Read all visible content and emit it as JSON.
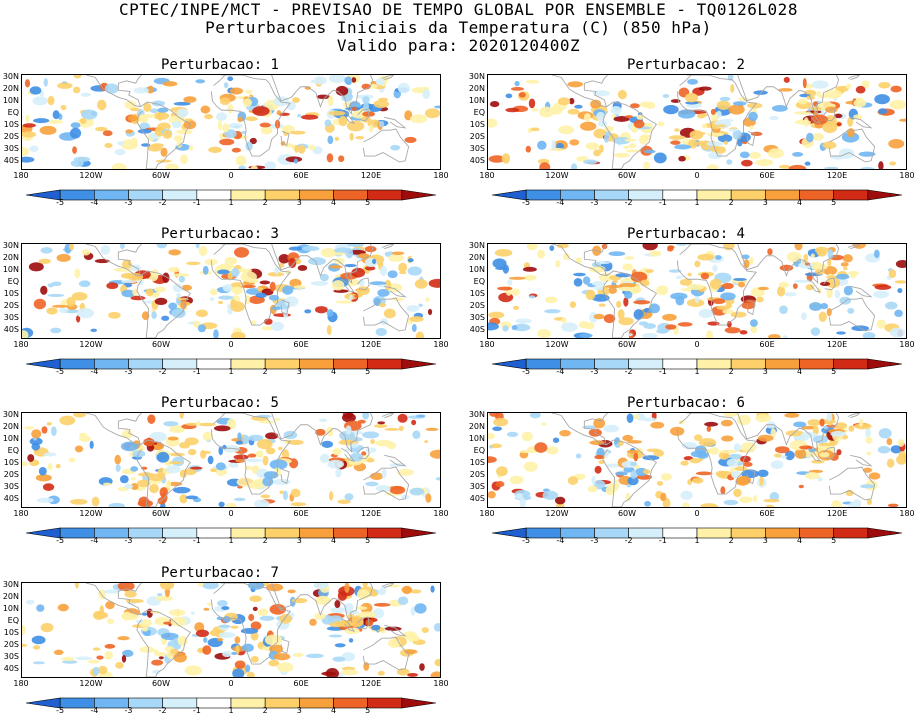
{
  "header": {
    "line1": "CPTEC/INPE/MCT - PREVISAO DE TEMPO GLOBAL POR ENSEMBLE - TQ0126L028",
    "line2": "Perturbacoes Iniciais da Temperatura (C) (850 hPa)",
    "line3": "Valido para: 2020120400Z"
  },
  "axes": {
    "lat_labels": [
      "30N",
      "20N",
      "10N",
      "EQ",
      "10S",
      "20S",
      "30S",
      "40S"
    ],
    "lon_labels": [
      "180",
      "120W",
      "60W",
      "0",
      "60E",
      "120E",
      "180"
    ]
  },
  "colorbar": {
    "ticks": [
      "-5",
      "-4",
      "-3",
      "-2",
      "-1",
      "1",
      "2",
      "3",
      "4",
      "5"
    ],
    "colors": [
      "#1f5fcf",
      "#3f8fe6",
      "#6fb6f2",
      "#a8d8f7",
      "#d6f0fb",
      "#ffffff",
      "#fff2a8",
      "#fdd06a",
      "#f8a13c",
      "#ee6426",
      "#d12b15",
      "#9e0c0c"
    ]
  },
  "panels": [
    {
      "title": "Perturbacao: 1"
    },
    {
      "title": "Perturbacao: 2"
    },
    {
      "title": "Perturbacao: 3"
    },
    {
      "title": "Perturbacao: 4"
    },
    {
      "title": "Perturbacao: 5"
    },
    {
      "title": "Perturbacao: 6"
    },
    {
      "title": "Perturbacao: 7"
    }
  ],
  "colors": {
    "coastline": "#a8a8a8",
    "frame": "#000000"
  }
}
